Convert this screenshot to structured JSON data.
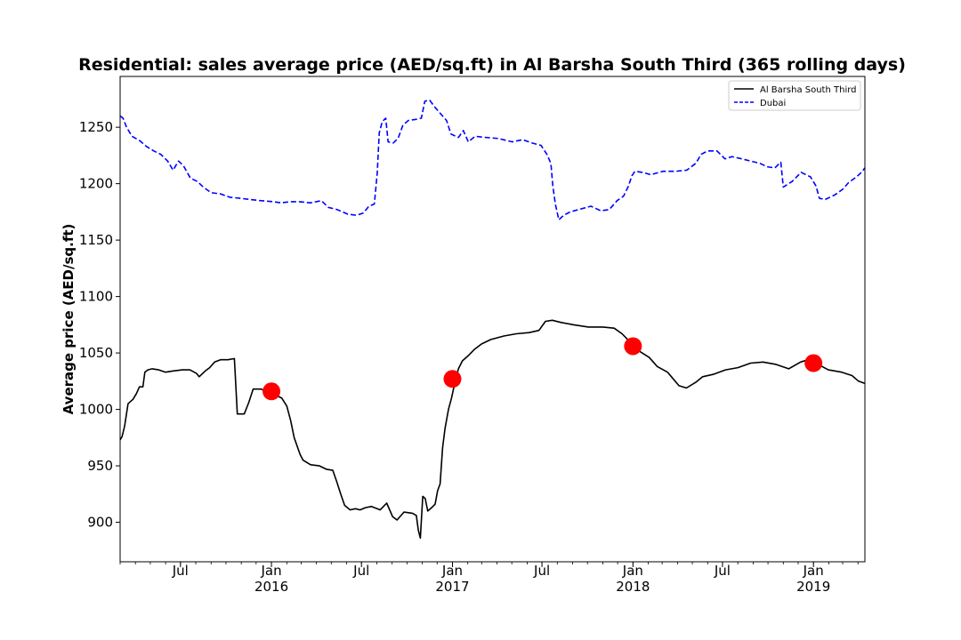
{
  "chart_data": {
    "type": "line",
    "title": "Residential: sales average price (AED/sq.ft) in Al Barsha South Third (365 rolling days)",
    "xlabel": "",
    "ylabel": "Average price (AED/sq.ft)",
    "xlim": [
      "2015-03-01",
      "2019-04-15"
    ],
    "ylim": [
      865,
      1295
    ],
    "yticks": [
      900,
      950,
      1000,
      1050,
      1100,
      1150,
      1200,
      1250
    ],
    "xticks": [
      {
        "date": "2015-07-01",
        "label": "Jul",
        "year": ""
      },
      {
        "date": "2016-01-01",
        "label": "Jan",
        "year": "2016"
      },
      {
        "date": "2016-07-01",
        "label": "Jul",
        "year": ""
      },
      {
        "date": "2017-01-01",
        "label": "Jan",
        "year": "2017"
      },
      {
        "date": "2017-07-01",
        "label": "Jul",
        "year": ""
      },
      {
        "date": "2018-01-01",
        "label": "Jan",
        "year": "2018"
      },
      {
        "date": "2018-07-01",
        "label": "Jul",
        "year": ""
      },
      {
        "date": "2019-01-01",
        "label": "Jan",
        "year": "2019"
      }
    ],
    "legend_position": "top-right",
    "grid": false,
    "series": [
      {
        "name": "Al Barsha South Third",
        "color": "#000000",
        "style": "solid",
        "points": [
          [
            "2015-03-01",
            973
          ],
          [
            "2015-03-05",
            976
          ],
          [
            "2015-03-10",
            985
          ],
          [
            "2015-03-17",
            1005
          ],
          [
            "2015-03-27",
            1009
          ],
          [
            "2015-04-03",
            1014
          ],
          [
            "2015-04-09",
            1020
          ],
          [
            "2015-04-16",
            1020
          ],
          [
            "2015-04-20",
            1033
          ],
          [
            "2015-04-26",
            1035
          ],
          [
            "2015-05-05",
            1036
          ],
          [
            "2015-05-18",
            1035
          ],
          [
            "2015-06-01",
            1033
          ],
          [
            "2015-06-15",
            1034
          ],
          [
            "2015-07-05",
            1035
          ],
          [
            "2015-07-20",
            1035
          ],
          [
            "2015-08-02",
            1032
          ],
          [
            "2015-08-08",
            1029
          ],
          [
            "2015-08-20",
            1034
          ],
          [
            "2015-08-29",
            1037
          ],
          [
            "2015-09-08",
            1042
          ],
          [
            "2015-09-20",
            1044
          ],
          [
            "2015-10-05",
            1044
          ],
          [
            "2015-10-18",
            1045
          ],
          [
            "2015-10-20",
            1029
          ],
          [
            "2015-10-24",
            996
          ],
          [
            "2015-11-07",
            996
          ],
          [
            "2015-11-16",
            1006
          ],
          [
            "2015-11-25",
            1018
          ],
          [
            "2015-12-11",
            1018
          ],
          [
            "2015-12-25",
            1015
          ],
          [
            "2016-01-08",
            1013
          ],
          [
            "2016-01-22",
            1010
          ],
          [
            "2016-02-01",
            1003
          ],
          [
            "2016-02-09",
            990
          ],
          [
            "2016-02-16",
            975
          ],
          [
            "2016-02-28",
            960
          ],
          [
            "2016-03-05",
            955
          ],
          [
            "2016-03-20",
            951
          ],
          [
            "2016-04-07",
            950
          ],
          [
            "2016-04-21",
            947
          ],
          [
            "2016-05-04",
            946
          ],
          [
            "2016-05-12",
            936
          ],
          [
            "2016-05-20",
            925
          ],
          [
            "2016-05-28",
            915
          ],
          [
            "2016-06-08",
            911
          ],
          [
            "2016-06-19",
            912
          ],
          [
            "2016-06-28",
            911
          ],
          [
            "2016-07-09",
            913
          ],
          [
            "2016-07-21",
            914
          ],
          [
            "2016-08-08",
            911
          ],
          [
            "2016-08-21",
            917
          ],
          [
            "2016-09-02",
            905
          ],
          [
            "2016-09-11",
            902
          ],
          [
            "2016-09-25",
            909
          ],
          [
            "2016-10-12",
            908
          ],
          [
            "2016-10-20",
            906
          ],
          [
            "2016-10-24",
            893
          ],
          [
            "2016-10-28",
            886
          ],
          [
            "2016-11-02",
            923
          ],
          [
            "2016-11-07",
            921
          ],
          [
            "2016-11-12",
            910
          ],
          [
            "2016-11-20",
            913
          ],
          [
            "2016-11-27",
            916
          ],
          [
            "2016-12-02",
            928
          ],
          [
            "2016-12-07",
            934
          ],
          [
            "2016-12-12",
            966
          ],
          [
            "2016-12-17",
            983
          ],
          [
            "2016-12-24",
            1000
          ],
          [
            "2016-12-30",
            1010
          ],
          [
            "2017-01-06",
            1024
          ],
          [
            "2017-01-13",
            1036
          ],
          [
            "2017-01-21",
            1043
          ],
          [
            "2017-02-03",
            1048
          ],
          [
            "2017-02-14",
            1053
          ],
          [
            "2017-03-01",
            1058
          ],
          [
            "2017-03-20",
            1062
          ],
          [
            "2017-04-15",
            1065
          ],
          [
            "2017-05-10",
            1067
          ],
          [
            "2017-06-05",
            1068
          ],
          [
            "2017-06-25",
            1070
          ],
          [
            "2017-07-08",
            1078
          ],
          [
            "2017-07-22",
            1079
          ],
          [
            "2017-08-09",
            1077
          ],
          [
            "2017-09-02",
            1075
          ],
          [
            "2017-10-03",
            1073
          ],
          [
            "2017-11-01",
            1073
          ],
          [
            "2017-11-24",
            1072
          ],
          [
            "2017-12-10",
            1067
          ],
          [
            "2017-12-30",
            1058
          ],
          [
            "2018-01-16",
            1051
          ],
          [
            "2018-02-03",
            1046
          ],
          [
            "2018-02-19",
            1038
          ],
          [
            "2018-03-12",
            1033
          ],
          [
            "2018-04-04",
            1021
          ],
          [
            "2018-04-19",
            1019
          ],
          [
            "2018-05-08",
            1024
          ],
          [
            "2018-05-22",
            1029
          ],
          [
            "2018-06-12",
            1031
          ],
          [
            "2018-07-07",
            1035
          ],
          [
            "2018-08-01",
            1037
          ],
          [
            "2018-08-27",
            1041
          ],
          [
            "2018-09-21",
            1042
          ],
          [
            "2018-10-16",
            1040
          ],
          [
            "2018-11-12",
            1036
          ],
          [
            "2018-12-06",
            1042
          ],
          [
            "2018-12-21",
            1044
          ],
          [
            "2019-01-10",
            1040
          ],
          [
            "2019-01-31",
            1035
          ],
          [
            "2019-02-27",
            1033
          ],
          [
            "2019-03-20",
            1030
          ],
          [
            "2019-04-02",
            1025
          ],
          [
            "2019-04-15",
            1023
          ]
        ]
      },
      {
        "name": "Dubai",
        "color": "#0000ff",
        "style": "dashed",
        "points": [
          [
            "2015-03-01",
            1260
          ],
          [
            "2015-03-07",
            1258
          ],
          [
            "2015-03-14",
            1250
          ],
          [
            "2015-03-25",
            1242
          ],
          [
            "2015-04-10",
            1238
          ],
          [
            "2015-04-23",
            1233
          ],
          [
            "2015-05-08",
            1229
          ],
          [
            "2015-05-22",
            1226
          ],
          [
            "2015-06-05",
            1220
          ],
          [
            "2015-06-16",
            1212
          ],
          [
            "2015-06-27",
            1220
          ],
          [
            "2015-07-07",
            1216
          ],
          [
            "2015-07-21",
            1205
          ],
          [
            "2015-08-04",
            1202
          ],
          [
            "2015-08-16",
            1197
          ],
          [
            "2015-09-01",
            1192
          ],
          [
            "2015-09-20",
            1191
          ],
          [
            "2015-10-09",
            1188
          ],
          [
            "2015-10-30",
            1187
          ],
          [
            "2015-11-18",
            1186
          ],
          [
            "2015-12-10",
            1185
          ],
          [
            "2016-01-05",
            1184
          ],
          [
            "2016-01-20",
            1183
          ],
          [
            "2016-02-08",
            1184
          ],
          [
            "2016-02-26",
            1184
          ],
          [
            "2016-03-20",
            1183
          ],
          [
            "2016-04-11",
            1185
          ],
          [
            "2016-04-25",
            1179
          ],
          [
            "2016-05-13",
            1177
          ],
          [
            "2016-06-03",
            1173
          ],
          [
            "2016-06-21",
            1172
          ],
          [
            "2016-07-05",
            1174
          ],
          [
            "2016-07-16",
            1180
          ],
          [
            "2016-07-27",
            1182
          ],
          [
            "2016-08-02",
            1210
          ],
          [
            "2016-08-06",
            1245
          ],
          [
            "2016-08-12",
            1255
          ],
          [
            "2016-08-19",
            1258
          ],
          [
            "2016-08-24",
            1237
          ],
          [
            "2016-09-03",
            1236
          ],
          [
            "2016-09-13",
            1240
          ],
          [
            "2016-09-23",
            1252
          ],
          [
            "2016-10-04",
            1256
          ],
          [
            "2016-10-19",
            1257
          ],
          [
            "2016-10-30",
            1258
          ],
          [
            "2016-11-06",
            1273
          ],
          [
            "2016-11-16",
            1274
          ],
          [
            "2016-11-26",
            1268
          ],
          [
            "2016-12-08",
            1262
          ],
          [
            "2016-12-20",
            1256
          ],
          [
            "2016-12-29",
            1244
          ],
          [
            "2017-01-13",
            1241
          ],
          [
            "2017-01-23",
            1247
          ],
          [
            "2017-02-02",
            1237
          ],
          [
            "2017-02-16",
            1242
          ],
          [
            "2017-03-09",
            1241
          ],
          [
            "2017-04-04",
            1240
          ],
          [
            "2017-05-02",
            1237
          ],
          [
            "2017-05-23",
            1239
          ],
          [
            "2017-06-11",
            1236
          ],
          [
            "2017-06-29",
            1234
          ],
          [
            "2017-07-11",
            1226
          ],
          [
            "2017-07-19",
            1218
          ],
          [
            "2017-07-23",
            1198
          ],
          [
            "2017-07-28",
            1182
          ],
          [
            "2017-08-04",
            1168
          ],
          [
            "2017-08-14",
            1172
          ],
          [
            "2017-08-27",
            1175
          ],
          [
            "2017-09-13",
            1177
          ],
          [
            "2017-10-08",
            1180
          ],
          [
            "2017-10-28",
            1176
          ],
          [
            "2017-11-14",
            1177
          ],
          [
            "2017-11-30",
            1185
          ],
          [
            "2017-12-13",
            1189
          ],
          [
            "2017-12-22",
            1197
          ],
          [
            "2017-12-30",
            1207
          ],
          [
            "2018-01-05",
            1211
          ],
          [
            "2018-01-20",
            1210
          ],
          [
            "2018-02-06",
            1208
          ],
          [
            "2018-03-03",
            1211
          ],
          [
            "2018-03-29",
            1211
          ],
          [
            "2018-04-20",
            1212
          ],
          [
            "2018-05-08",
            1218
          ],
          [
            "2018-05-19",
            1226
          ],
          [
            "2018-06-01",
            1229
          ],
          [
            "2018-06-20",
            1229
          ],
          [
            "2018-07-06",
            1222
          ],
          [
            "2018-07-20",
            1224
          ],
          [
            "2018-08-09",
            1222
          ],
          [
            "2018-08-27",
            1220
          ],
          [
            "2018-09-15",
            1218
          ],
          [
            "2018-09-29",
            1215
          ],
          [
            "2018-10-15",
            1214
          ],
          [
            "2018-10-27",
            1219
          ],
          [
            "2018-11-01",
            1197
          ],
          [
            "2018-11-19",
            1202
          ],
          [
            "2018-12-07",
            1210
          ],
          [
            "2018-12-26",
            1206
          ],
          [
            "2019-01-06",
            1198
          ],
          [
            "2019-01-13",
            1187
          ],
          [
            "2019-01-25",
            1186
          ],
          [
            "2019-02-13",
            1190
          ],
          [
            "2019-03-01",
            1195
          ],
          [
            "2019-03-13",
            1201
          ],
          [
            "2019-03-29",
            1206
          ],
          [
            "2019-04-08",
            1210
          ],
          [
            "2019-04-15",
            1214
          ]
        ]
      }
    ],
    "markers": {
      "color": "#ff0000",
      "points": [
        [
          "2016-01-01",
          1016
        ],
        [
          "2017-01-01",
          1027
        ],
        [
          "2018-01-01",
          1056
        ],
        [
          "2019-01-01",
          1041
        ]
      ]
    }
  }
}
